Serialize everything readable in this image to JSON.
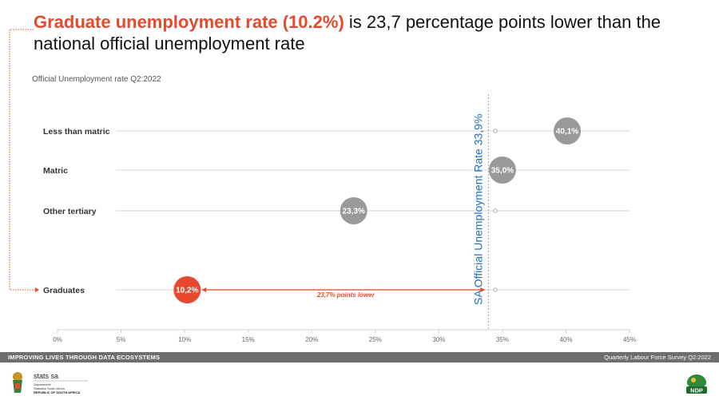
{
  "headline": {
    "highlight": "Graduate unemployment rate (10.2%)",
    "rest": " is 23,7 percentage points lower than the national official unemployment rate"
  },
  "chart_data": {
    "type": "scatter",
    "subtitle": "Official Unemployment rate Q2:2022",
    "categories": [
      "Less than matric",
      "Matric",
      "Other tertiary",
      "Graduates"
    ],
    "values": [
      40.1,
      35.0,
      23.3,
      10.2
    ],
    "value_labels": [
      "40,1%",
      "35,0%",
      "23,3%",
      "10,2%"
    ],
    "xlim": [
      0,
      45
    ],
    "x_ticks": [
      "0%",
      "5%",
      "10%",
      "15%",
      "20%",
      "25%",
      "30%",
      "35%",
      "40%",
      "45%"
    ],
    "reference_line": {
      "value": 33.9,
      "label": "SA Official Unemployment Rate  33,9%"
    },
    "annotation": "23,7% points lower",
    "colors": {
      "default": "#999999",
      "highlight": "#e8492e",
      "reference": "#1f6fbf"
    }
  },
  "footer": {
    "left": "IMPROVING LIVES THROUGH DATA ECOSYSTEMS",
    "right": "Quarterly Labour Force Survey Q2:2022"
  },
  "logos": {
    "stats_sa": "stats sa",
    "stats_sub1": "Department:",
    "stats_sub2": "Statistics South Africa",
    "stats_sub3": "REPUBLIC OF SOUTH AFRICA",
    "ndp": "NDP"
  }
}
